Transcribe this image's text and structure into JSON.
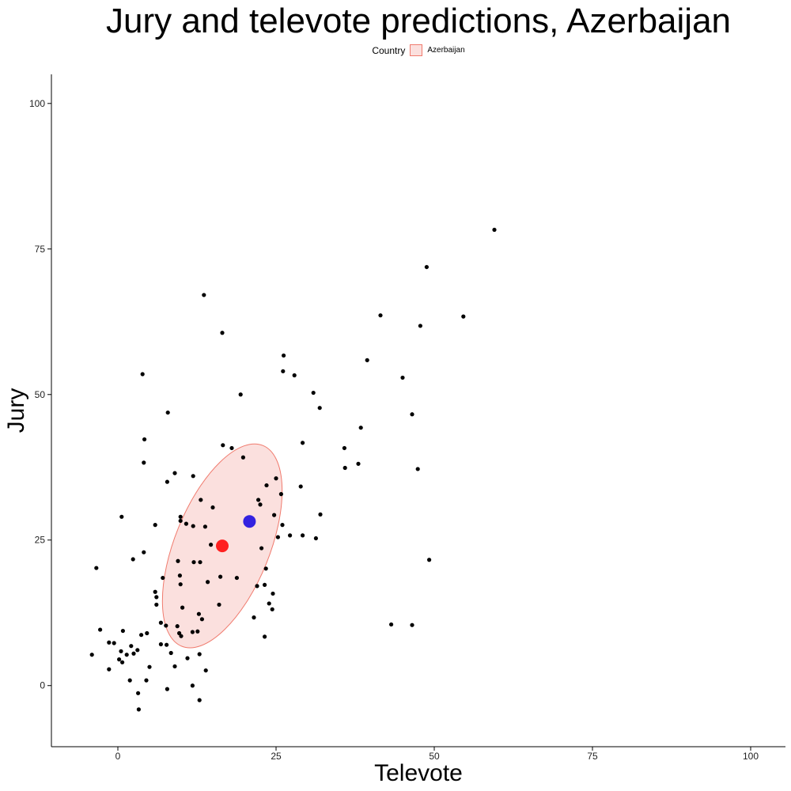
{
  "chart_data": {
    "type": "scatter",
    "title": "Jury and televote predictions, Azerbaijan",
    "xlabel": "Televote",
    "ylabel": "Jury",
    "xlim": [
      -10.5,
      105.5
    ],
    "ylim": [
      -10.5,
      105
    ],
    "xticks": [
      0,
      25,
      50,
      75,
      100
    ],
    "yticks": [
      0,
      25,
      50,
      75,
      100
    ],
    "grid": false,
    "legend": {
      "title": "Country",
      "entries": [
        "Azerbaijan"
      ],
      "position": "top"
    },
    "colors": {
      "points": "#000000",
      "highlight_red": "#ff2020",
      "highlight_blue": "#3322e0",
      "ellipse_fill": "#fbe0de",
      "ellipse_stroke": "#f07b6e"
    },
    "ellipse": {
      "group": "Azerbaijan",
      "center": [
        16.5,
        24
      ],
      "semi_axes": [
        7.5,
        18.6
      ],
      "tilt_deg": 22
    },
    "highlight_points": [
      {
        "x": 16.5,
        "y": 24,
        "color": "#ff2020"
      },
      {
        "x": 20.8,
        "y": 28.2,
        "color": "#3322e0"
      }
    ],
    "points": [
      [
        59.5,
        78.3
      ],
      [
        48.8,
        71.9
      ],
      [
        54.6,
        63.4
      ],
      [
        41.5,
        63.6
      ],
      [
        47.8,
        61.8
      ],
      [
        45.0,
        52.9
      ],
      [
        39.4,
        55.9
      ],
      [
        46.5,
        46.6
      ],
      [
        30.9,
        50.3
      ],
      [
        31.9,
        47.7
      ],
      [
        38.4,
        44.3
      ],
      [
        35.8,
        40.8
      ],
      [
        35.9,
        37.4
      ],
      [
        38.0,
        38.1
      ],
      [
        47.4,
        37.2
      ],
      [
        49.2,
        21.6
      ],
      [
        43.2,
        10.5
      ],
      [
        46.5,
        10.4
      ],
      [
        26.2,
        56.7
      ],
      [
        26.1,
        54.0
      ],
      [
        27.9,
        53.3
      ],
      [
        19.4,
        50.0
      ],
      [
        29.2,
        41.7
      ],
      [
        16.5,
        60.6
      ],
      [
        13.6,
        67.1
      ],
      [
        16.6,
        41.3
      ],
      [
        18.0,
        40.8
      ],
      [
        19.8,
        39.2
      ],
      [
        25.0,
        35.6
      ],
      [
        23.5,
        34.4
      ],
      [
        28.9,
        34.2
      ],
      [
        25.8,
        32.9
      ],
      [
        22.2,
        31.9
      ],
      [
        22.5,
        31.1
      ],
      [
        32.0,
        29.4
      ],
      [
        24.7,
        29.3
      ],
      [
        26.0,
        27.6
      ],
      [
        25.3,
        25.5
      ],
      [
        27.2,
        25.8
      ],
      [
        29.2,
        25.8
      ],
      [
        31.3,
        25.3
      ],
      [
        22.7,
        23.6
      ],
      [
        23.4,
        20.1
      ],
      [
        22.0,
        17.1
      ],
      [
        23.2,
        17.3
      ],
      [
        23.9,
        14.1
      ],
      [
        24.4,
        13.1
      ],
      [
        24.5,
        15.8
      ],
      [
        21.5,
        11.7
      ],
      [
        23.2,
        8.4
      ],
      [
        18.8,
        18.5
      ],
      [
        16.2,
        18.7
      ],
      [
        14.7,
        24.2
      ],
      [
        15.0,
        30.6
      ],
      [
        13.1,
        31.9
      ],
      [
        13.8,
        27.3
      ],
      [
        11.9,
        27.4
      ],
      [
        14.2,
        17.8
      ],
      [
        16.0,
        13.9
      ],
      [
        13.3,
        11.4
      ],
      [
        12.6,
        9.3
      ],
      [
        12.9,
        5.4
      ],
      [
        11.8,
        9.2
      ],
      [
        11.8,
        0.0
      ],
      [
        12.9,
        -2.5
      ],
      [
        13.9,
        2.6
      ],
      [
        11.9,
        36.0
      ],
      [
        9.0,
        36.5
      ],
      [
        7.8,
        35.0
      ],
      [
        7.9,
        46.9
      ],
      [
        4.1,
        38.3
      ],
      [
        4.2,
        42.3
      ],
      [
        3.9,
        53.5
      ],
      [
        4.1,
        22.9
      ],
      [
        0.6,
        29.0
      ],
      [
        9.9,
        29.0
      ],
      [
        9.9,
        28.3
      ],
      [
        10.8,
        27.8
      ],
      [
        12.0,
        21.2
      ],
      [
        13.0,
        21.2
      ],
      [
        9.5,
        21.4
      ],
      [
        9.8,
        18.9
      ],
      [
        9.9,
        17.4
      ],
      [
        7.1,
        18.5
      ],
      [
        5.9,
        27.6
      ],
      [
        5.9,
        16.1
      ],
      [
        6.1,
        15.2
      ],
      [
        6.1,
        13.9
      ],
      [
        10.2,
        13.4
      ],
      [
        12.8,
        12.3
      ],
      [
        6.8,
        10.8
      ],
      [
        7.6,
        10.3
      ],
      [
        9.4,
        10.2
      ],
      [
        9.7,
        9.0
      ],
      [
        10.0,
        8.5
      ],
      [
        8.4,
        5.6
      ],
      [
        9.0,
        3.3
      ],
      [
        7.7,
        7.0
      ],
      [
        6.8,
        7.1
      ],
      [
        11.0,
        4.7
      ],
      [
        7.8,
        -0.6
      ],
      [
        2.4,
        21.7
      ],
      [
        -3.4,
        20.2
      ],
      [
        -2.8,
        9.6
      ],
      [
        -1.4,
        7.4
      ],
      [
        -0.6,
        7.3
      ],
      [
        -1.4,
        2.8
      ],
      [
        -4.1,
        5.3
      ],
      [
        0.2,
        4.5
      ],
      [
        0.7,
        4.0
      ],
      [
        1.4,
        5.3
      ],
      [
        0.5,
        5.9
      ],
      [
        0.8,
        9.4
      ],
      [
        2.1,
        6.8
      ],
      [
        2.5,
        5.5
      ],
      [
        3.1,
        6.1
      ],
      [
        3.7,
        8.7
      ],
      [
        4.6,
        9.0
      ],
      [
        5.0,
        3.2
      ],
      [
        4.5,
        0.9
      ],
      [
        1.9,
        0.9
      ],
      [
        3.2,
        -1.3
      ],
      [
        3.3,
        -4.1
      ]
    ]
  }
}
